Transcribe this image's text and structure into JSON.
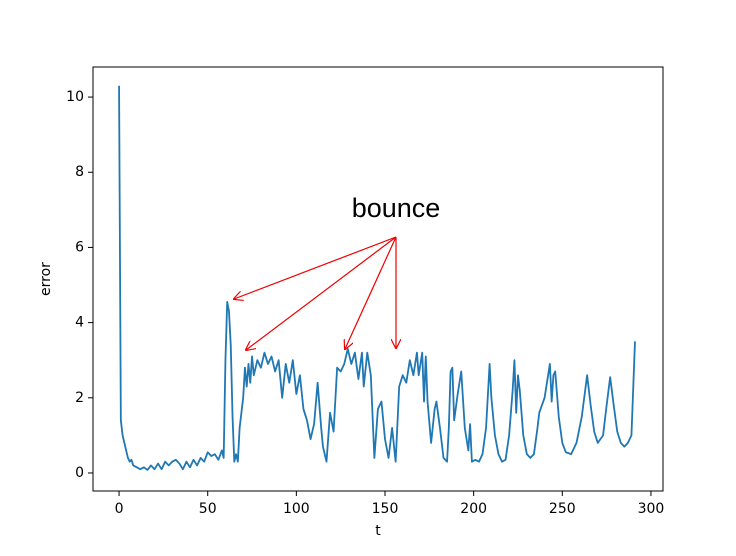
{
  "chart_data": {
    "type": "line",
    "xlabel": "t",
    "ylabel": "error",
    "annotation": "bounce",
    "color": "#1f77b4",
    "x": [
      0,
      1,
      2,
      3,
      4,
      5,
      6,
      7,
      8,
      10,
      12,
      14,
      16,
      18,
      20,
      22,
      24,
      26,
      28,
      30,
      32,
      34,
      36,
      38,
      40,
      42,
      44,
      46,
      48,
      50,
      52,
      54,
      56,
      58,
      59,
      60,
      61,
      62,
      63,
      64,
      65,
      66,
      67,
      68,
      70,
      71,
      72,
      73,
      74,
      75,
      76,
      78,
      80,
      82,
      84,
      86,
      88,
      90,
      92,
      94,
      96,
      98,
      100,
      102,
      104,
      106,
      108,
      110,
      112,
      114,
      115,
      117,
      119,
      121,
      123,
      125,
      127,
      129,
      131,
      133,
      135,
      137,
      138,
      140,
      142,
      144,
      146,
      148,
      150,
      152,
      154,
      156,
      158,
      160,
      162,
      164,
      166,
      168,
      169,
      171,
      172,
      173,
      174,
      176,
      178,
      179,
      181,
      183,
      185,
      186,
      187,
      188,
      189,
      191,
      193,
      195,
      197,
      198,
      199,
      201,
      203,
      205,
      207,
      209,
      210,
      212,
      214,
      216,
      218,
      220,
      222,
      223,
      224,
      225,
      226,
      228,
      230,
      232,
      234,
      236,
      237,
      240,
      243,
      244,
      245,
      246,
      248,
      250,
      252,
      255,
      258,
      261,
      264,
      266,
      268,
      270,
      273,
      275,
      277,
      279,
      281,
      283,
      285,
      287,
      289,
      291
    ],
    "values": [
      10.3,
      1.4,
      1.0,
      0.8,
      0.6,
      0.4,
      0.3,
      0.35,
      0.2,
      0.15,
      0.1,
      0.15,
      0.08,
      0.2,
      0.1,
      0.25,
      0.1,
      0.3,
      0.2,
      0.3,
      0.35,
      0.25,
      0.1,
      0.3,
      0.15,
      0.35,
      0.2,
      0.4,
      0.3,
      0.55,
      0.45,
      0.5,
      0.35,
      0.6,
      0.4,
      3.0,
      4.55,
      4.3,
      3.4,
      1.5,
      0.3,
      0.5,
      0.3,
      1.2,
      2.0,
      2.8,
      2.3,
      2.9,
      2.4,
      3.1,
      2.6,
      3.0,
      2.8,
      3.2,
      2.9,
      3.1,
      2.7,
      3.0,
      2.0,
      2.9,
      2.4,
      3.0,
      2.1,
      2.6,
      1.7,
      1.4,
      0.9,
      1.3,
      2.4,
      1.2,
      0.7,
      0.3,
      1.6,
      1.1,
      2.8,
      2.7,
      2.9,
      3.3,
      2.9,
      3.2,
      2.5,
      3.2,
      2.3,
      3.2,
      2.6,
      0.4,
      1.7,
      1.9,
      0.9,
      0.4,
      1.2,
      0.3,
      2.3,
      2.6,
      2.4,
      3.0,
      2.6,
      3.2,
      2.6,
      3.2,
      1.9,
      3.1,
      1.9,
      0.8,
      1.7,
      1.9,
      1.2,
      0.4,
      0.3,
      1.2,
      2.7,
      2.8,
      1.4,
      2.1,
      2.7,
      1.2,
      0.6,
      1.3,
      0.3,
      0.35,
      0.3,
      0.5,
      1.2,
      2.9,
      2.0,
      1.0,
      0.5,
      0.3,
      0.35,
      1.0,
      2.2,
      3.0,
      1.6,
      2.6,
      2.2,
      1.0,
      0.5,
      0.4,
      0.5,
      1.2,
      1.6,
      2.0,
      2.9,
      1.9,
      2.6,
      2.7,
      1.5,
      0.8,
      0.55,
      0.5,
      0.8,
      1.5,
      2.6,
      1.8,
      1.1,
      0.8,
      1.0,
      1.8,
      2.55,
      1.8,
      1.1,
      0.8,
      0.7,
      0.8,
      1.0,
      3.5
    ],
    "xlim": [
      -14.7,
      306.8
    ],
    "ylim": [
      -0.48,
      10.8
    ],
    "xticks": [
      0,
      50,
      100,
      150,
      200,
      250,
      300
    ],
    "yticks": [
      0,
      2,
      4,
      6,
      8,
      10
    ]
  }
}
